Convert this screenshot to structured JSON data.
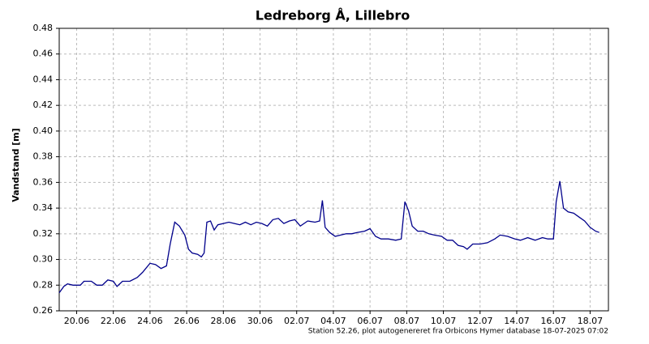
{
  "chart_data": {
    "type": "line",
    "title": "Ledreborg Å, Lillebro",
    "y_label": "Vandstand [m]",
    "footnote": "Station 52.26, plot autogenereret fra Orbicons Hymer database 18-07-2025 07:02",
    "xlim": [
      19.05,
      49
    ],
    "xticks": [
      {
        "value": 20,
        "label": "20.06"
      },
      {
        "value": 22,
        "label": "22.06"
      },
      {
        "value": 24,
        "label": "24.06"
      },
      {
        "value": 26,
        "label": "26.06"
      },
      {
        "value": 28,
        "label": "28.06"
      },
      {
        "value": 30,
        "label": "30.06"
      },
      {
        "value": 32,
        "label": "02.07"
      },
      {
        "value": 34,
        "label": "04.07"
      },
      {
        "value": 36,
        "label": "06.07"
      },
      {
        "value": 38,
        "label": "08.07"
      },
      {
        "value": 40,
        "label": "10.07"
      },
      {
        "value": 42,
        "label": "12.07"
      },
      {
        "value": 44,
        "label": "14.07"
      },
      {
        "value": 46,
        "label": "16.07"
      },
      {
        "value": 48,
        "label": "18.07"
      }
    ],
    "ylim": [
      0.26,
      0.48
    ],
    "yticks": [
      0.26,
      0.28,
      {
        "value": 0.3,
        "label": "0.30"
      },
      0.32,
      0.34,
      0.36,
      0.38,
      {
        "value": 0.4,
        "label": "0.40"
      },
      0.42,
      0.44,
      0.46,
      0.48
    ],
    "grid": true,
    "series": [
      {
        "name": "Vandstand",
        "color": "#00008b",
        "x": [
          19.05,
          19.3,
          19.5,
          19.8,
          20.2,
          20.4,
          20.8,
          21.1,
          21.4,
          21.7,
          22.0,
          22.2,
          22.5,
          22.9,
          23.3,
          23.6,
          24.0,
          24.3,
          24.6,
          24.9,
          25.1,
          25.35,
          25.6,
          25.9,
          26.1,
          26.3,
          26.6,
          26.8,
          26.95,
          27.1,
          27.3,
          27.5,
          27.7,
          28.0,
          28.3,
          28.6,
          28.9,
          29.2,
          29.5,
          29.8,
          30.1,
          30.4,
          30.7,
          31.0,
          31.3,
          31.6,
          31.9,
          32.2,
          32.6,
          33.0,
          33.25,
          33.4,
          33.55,
          33.8,
          34.1,
          34.4,
          34.7,
          35.0,
          35.3,
          35.7,
          36.0,
          36.3,
          36.6,
          37.0,
          37.4,
          37.7,
          37.9,
          38.1,
          38.3,
          38.6,
          38.9,
          39.2,
          39.5,
          39.9,
          40.2,
          40.5,
          40.8,
          41.1,
          41.3,
          41.6,
          42.0,
          42.4,
          42.8,
          43.1,
          43.5,
          43.9,
          44.2,
          44.6,
          45.0,
          45.4,
          45.7,
          46.0,
          46.15,
          46.35,
          46.55,
          46.8,
          47.1,
          47.4,
          47.7,
          48.0,
          48.3,
          48.5
        ],
        "values": [
          0.274,
          0.279,
          0.281,
          0.28,
          0.28,
          0.283,
          0.283,
          0.28,
          0.28,
          0.284,
          0.283,
          0.279,
          0.283,
          0.283,
          0.286,
          0.29,
          0.297,
          0.296,
          0.293,
          0.295,
          0.312,
          0.329,
          0.326,
          0.319,
          0.308,
          0.305,
          0.304,
          0.302,
          0.305,
          0.329,
          0.33,
          0.323,
          0.327,
          0.328,
          0.329,
          0.328,
          0.327,
          0.329,
          0.327,
          0.329,
          0.328,
          0.326,
          0.331,
          0.332,
          0.328,
          0.33,
          0.331,
          0.326,
          0.33,
          0.329,
          0.33,
          0.346,
          0.325,
          0.321,
          0.318,
          0.319,
          0.32,
          0.32,
          0.321,
          0.322,
          0.324,
          0.318,
          0.316,
          0.316,
          0.315,
          0.316,
          0.345,
          0.338,
          0.326,
          0.322,
          0.322,
          0.32,
          0.319,
          0.318,
          0.315,
          0.315,
          0.311,
          0.31,
          0.308,
          0.312,
          0.312,
          0.313,
          0.316,
          0.319,
          0.318,
          0.316,
          0.315,
          0.317,
          0.315,
          0.317,
          0.316,
          0.316,
          0.345,
          0.361,
          0.34,
          0.337,
          0.336,
          0.333,
          0.33,
          0.325,
          0.322,
          0.321
        ]
      }
    ]
  }
}
